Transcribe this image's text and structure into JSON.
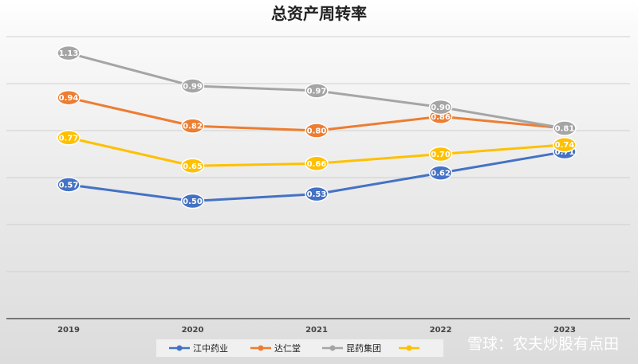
{
  "chart_data": {
    "type": "line",
    "title": "总资产周转率",
    "xlabel": "",
    "ylabel": "",
    "categories": [
      "2019",
      "2020",
      "2021",
      "2022",
      "2023"
    ],
    "ylim": [
      0,
      1.2
    ],
    "grid": true,
    "legend_position": "bottom",
    "series": [
      {
        "name": "江中药业",
        "color": "#4472c4",
        "values": [
          0.57,
          0.5,
          0.53,
          0.62,
          0.71
        ]
      },
      {
        "name": "达仁堂",
        "color": "#ed7d31",
        "values": [
          0.94,
          0.82,
          0.8,
          0.86,
          0.81
        ]
      },
      {
        "name": "昆药集团",
        "color": "#a5a5a5",
        "values": [
          1.13,
          0.99,
          0.97,
          0.9,
          0.81
        ]
      },
      {
        "name": "",
        "color": "#ffc000",
        "values": [
          0.77,
          0.65,
          0.66,
          0.7,
          0.74
        ]
      }
    ]
  },
  "watermark": "雪球：农夫炒股有点田"
}
